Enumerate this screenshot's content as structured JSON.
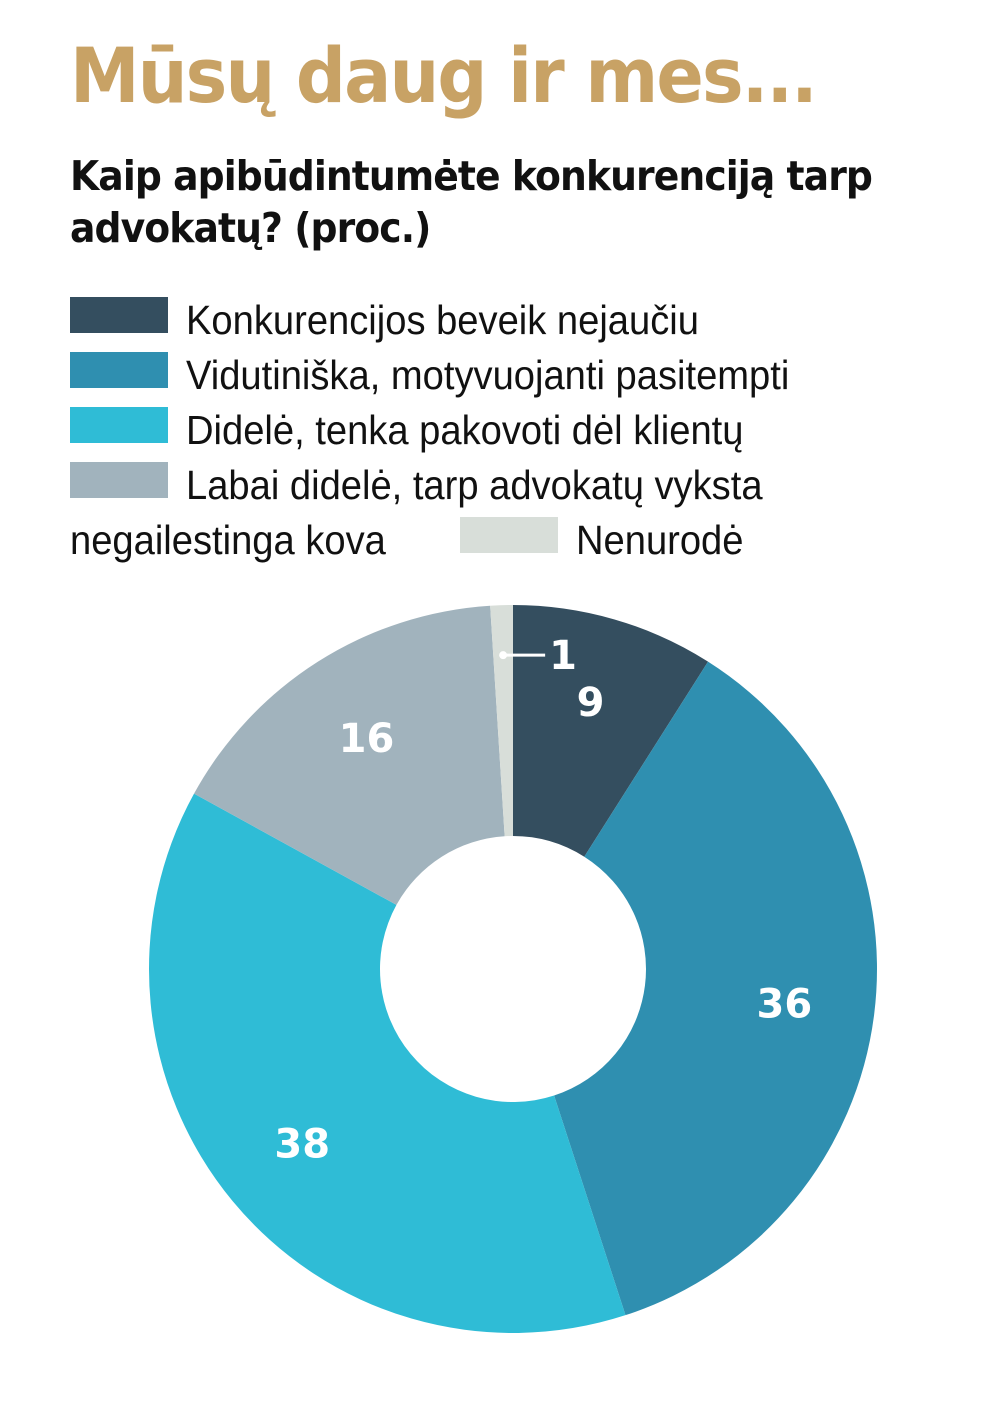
{
  "chart_data": {
    "type": "pie",
    "title": "Mūsų daug ir mes...",
    "subtitle": "Kaip apibūdintumėte konkurenciją tarp advokatų? (proc.)",
    "donut": true,
    "legend_position": "top",
    "slices": [
      {
        "label": "Konkurencijos beveik nejaučiu",
        "value": 9,
        "color": "#344e5f"
      },
      {
        "label": "Vidutiniška, motyvuojanti pasitempti",
        "value": 36,
        "color": "#2f8fb0"
      },
      {
        "label": "Didelė, tenka pakovoti dėl klientų",
        "value": 38,
        "color": "#2fbcd6"
      },
      {
        "label": "Labai didelė, tarp advokatų vyksta negailestinga kova",
        "value": 16,
        "color": "#a1b3bd"
      },
      {
        "label": "Nenurodė",
        "value": 1,
        "color": "#d8ded9"
      }
    ]
  },
  "legend": {
    "line4_part1": "Labai didelė, tarp advokatų vyksta",
    "line4_part2": "negailestinga kova"
  }
}
